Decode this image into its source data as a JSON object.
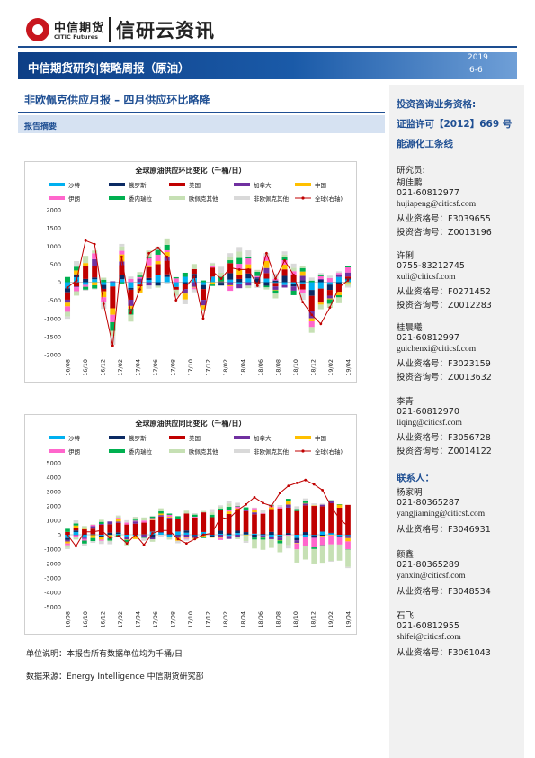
{
  "header": {
    "logo_cn": "中信期货",
    "logo_en": "CITIC Futures",
    "brand": "信研云资讯",
    "banner_title": "中信期货研究|策略周报（原油）",
    "year": "2019",
    "date": "6-6"
  },
  "report": {
    "title": "非欧佩克供应月报 – 四月供应环比略降",
    "summary_label": "报告摘要"
  },
  "legend_series": [
    "沙特",
    "俄罗斯",
    "美国",
    "加拿大",
    "中国",
    "伊朗",
    "委内瑞拉",
    "欧佩克其他",
    "非欧佩克其他",
    "全球(右轴)"
  ],
  "colors": {
    "沙特": "#00b0f0",
    "俄罗斯": "#0b2a63",
    "美国": "#c00000",
    "加拿大": "#7030a0",
    "中国": "#ffc000",
    "伊朗": "#ff66cc",
    "委内瑞拉": "#00b050",
    "欧佩克其他": "#c6e0b4",
    "非欧佩克其他": "#d9d9d9",
    "全球(右轴)": "#c00000",
    "banner": "#1a5aa8",
    "accent_text": "#1f4f93"
  },
  "chart_data": [
    {
      "type": "bar",
      "stacked": true,
      "title": "全球原油供应环比变化（千桶/日）",
      "x_tick_labels": [
        "16/08",
        "16/10",
        "16/12",
        "17/02",
        "17/04",
        "17/06",
        "17/08",
        "17/10",
        "17/12",
        "18/02",
        "18/04",
        "18/06",
        "18/08",
        "18/10",
        "18/12",
        "19/02",
        "19/04"
      ],
      "y_ticks": [
        -2000,
        -1500,
        -1000,
        -500,
        0,
        500,
        1000,
        1500,
        2000
      ],
      "ylim": [
        -2000,
        2000
      ],
      "legend_position": "top",
      "global_line": {
        "name": "全球(右轴)",
        "values": [
          -150,
          50,
          1150,
          1050,
          -600,
          -1750,
          700,
          -850,
          -200,
          800,
          950,
          700,
          -500,
          -150,
          150,
          -1000,
          300,
          100,
          400,
          350,
          350,
          -100,
          800,
          100,
          600,
          200,
          -550,
          -900,
          -1150,
          -700,
          -150,
          50
        ]
      }
    },
    {
      "type": "bar",
      "stacked": true,
      "title": "全球原油供应同比变化（千桶/日）",
      "x_tick_labels": [
        "16/08",
        "16/10",
        "16/12",
        "17/02",
        "17/04",
        "17/06",
        "17/08",
        "17/10",
        "17/12",
        "18/02",
        "18/04",
        "18/06",
        "18/08",
        "18/10",
        "18/12",
        "19/02",
        "19/04"
      ],
      "y_ticks": [
        -5000,
        -4000,
        -3000,
        -2000,
        -1000,
        0,
        1000,
        2000,
        3000,
        4000,
        5000
      ],
      "ylim": [
        -5000,
        5000
      ],
      "legend_position": "top",
      "global_line": {
        "name": "全球(右轴)",
        "values": [
          0,
          -800,
          200,
          200,
          300,
          -200,
          -100,
          -600,
          0,
          -700,
          100,
          300,
          300,
          -300,
          -600,
          -300,
          0,
          100,
          1200,
          1100,
          1700,
          2100,
          2600,
          2200,
          2000,
          2900,
          3400,
          3600,
          3800,
          3500,
          3100,
          2000,
          1100,
          600
        ]
      }
    }
  ],
  "notes": {
    "unit": "单位说明：本报告所有数据单位均为千桶/日",
    "source": "数据来源：Energy Intelligence  中信期货研究部"
  },
  "sidebar": {
    "qual_title": "投资咨询业务资格:",
    "license": "证监许可【2012】669 号",
    "team": "能源化工条线",
    "researchers_label": "研究员:",
    "researchers": [
      {
        "name": "胡佳鹏",
        "phone": "021-60812977",
        "email": "hujiapeng@citicsf.com",
        "cert1": "从业资格号：F3039655",
        "cert2": "投资咨询号：Z0013196"
      },
      {
        "name": "许俐",
        "phone": "0755-83212745",
        "email": "xuli@citicsf.com",
        "cert1": "从业资格号：F0271452",
        "cert2": "投资咨询号：Z0012283"
      },
      {
        "name": "桂晨曦",
        "phone": "021-60812997",
        "email": "guichenxi@citicsf.com",
        "cert1": "从业资格号：F3023159",
        "cert2": "投资咨询号：Z0013632"
      },
      {
        "name": "李青",
        "phone": "021-60812970",
        "email": "liqing@citicsf.com",
        "cert1": "从业资格号：F3056728",
        "cert2": "投资咨询号：Z0014122"
      }
    ],
    "contacts_label": "联系人：",
    "contacts": [
      {
        "name": "杨家明",
        "phone": "021-80365287",
        "email": "yangjiaming@citicsf.com",
        "cert1": "从业资格号：F3046931"
      },
      {
        "name": "颜鑫",
        "phone": "021-80365289",
        "email": "yanxin@citicsf.com",
        "cert1": "从业资格号：F3048534"
      },
      {
        "name": "石飞",
        "phone": "021-60812955",
        "email": "shifei@citicsf.com",
        "cert1": "从业资格号：F3061043"
      }
    ]
  }
}
